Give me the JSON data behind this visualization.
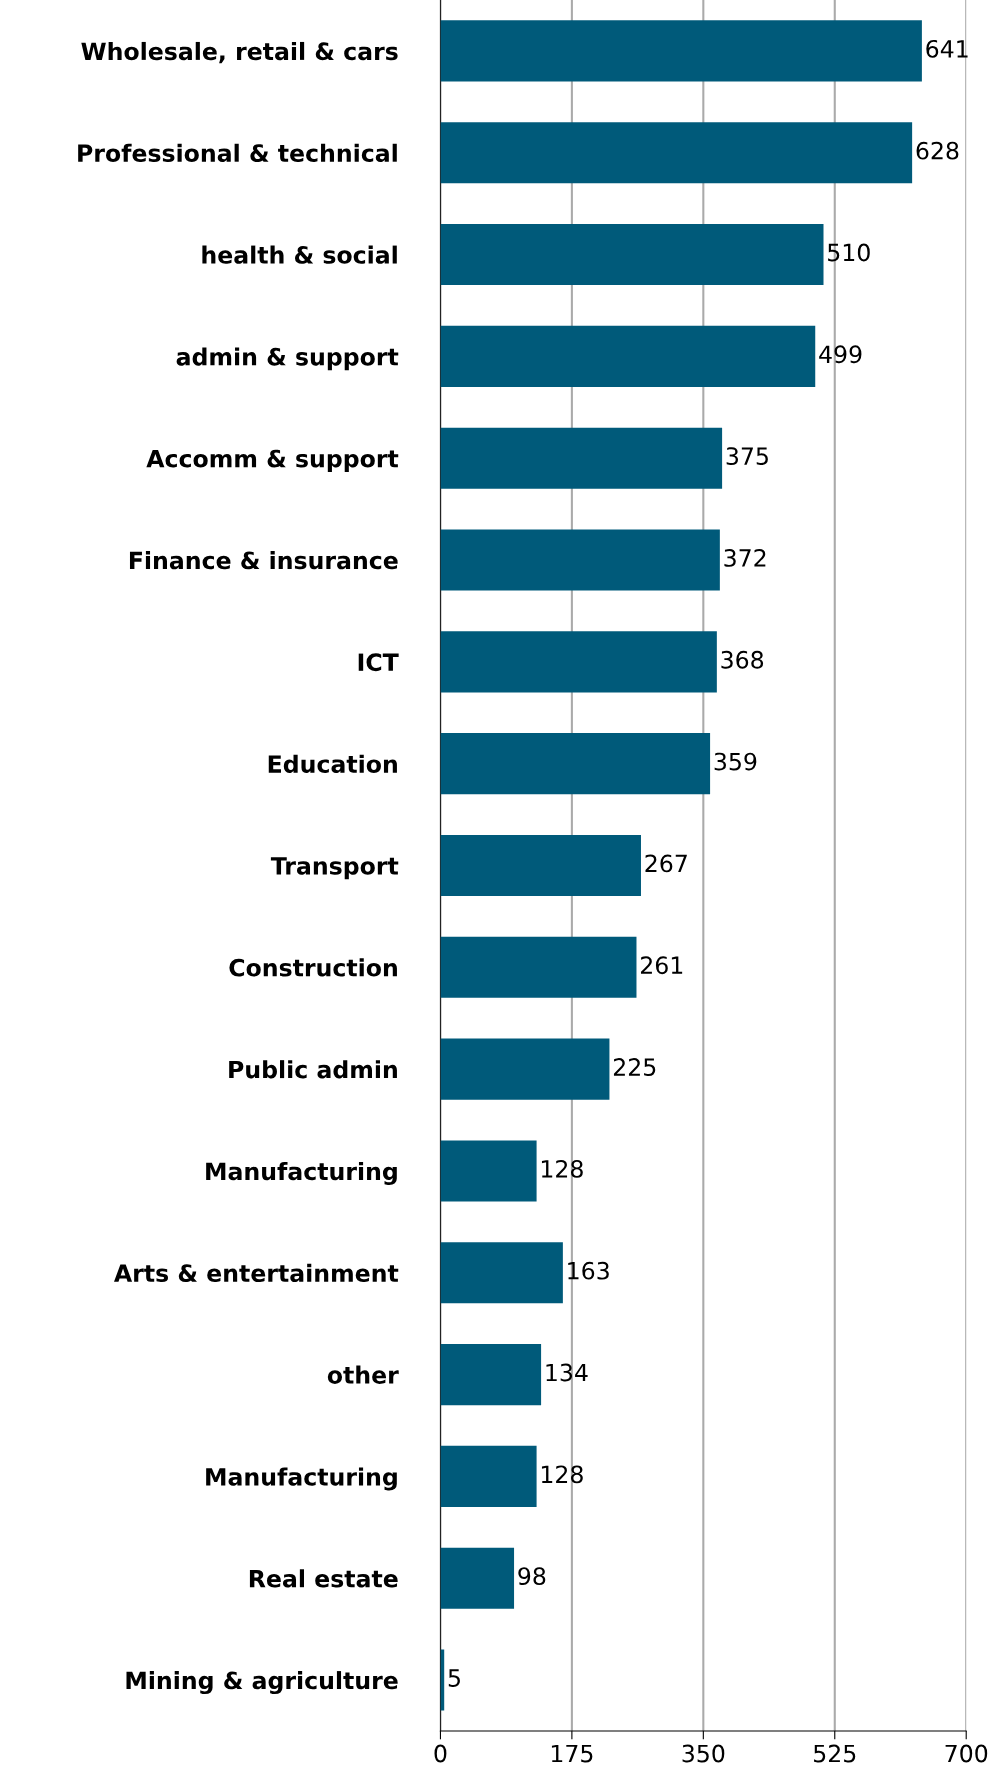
{
  "chart_data": {
    "type": "bar",
    "orientation": "horizontal",
    "categories": [
      "Wholesale, retail & cars",
      "Professional & technical",
      "health & social",
      "admin & support",
      "Accomm & support",
      "Finance & insurance",
      "ICT",
      "Education",
      "Transport",
      "Construction",
      "Public admin",
      "Manufacturing",
      "Arts & entertainment",
      "other",
      "Manufacturing",
      "Real estate",
      "Mining & agriculture"
    ],
    "values": [
      641,
      628,
      510,
      499,
      375,
      372,
      368,
      359,
      267,
      261,
      225,
      128,
      163,
      134,
      128,
      98,
      5
    ],
    "color": "#005a7a",
    "data_labels": true,
    "grid": "x",
    "xlim": [
      0,
      700
    ],
    "xticks": [
      0,
      175,
      350,
      525,
      700
    ]
  }
}
